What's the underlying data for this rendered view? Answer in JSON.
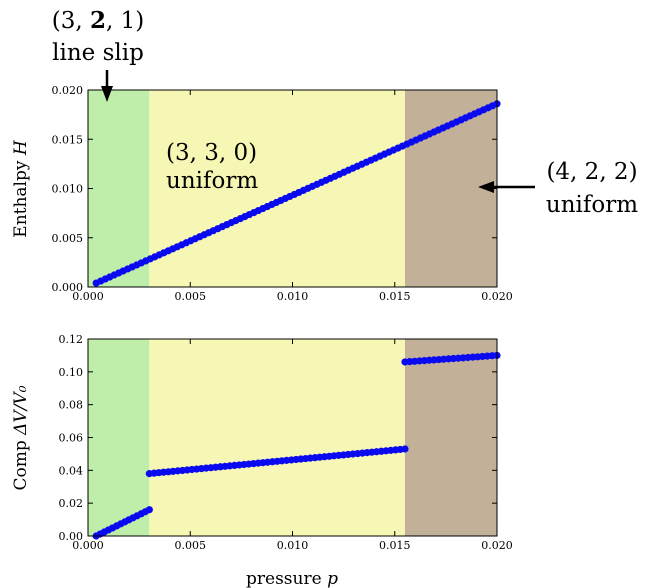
{
  "chart_data": [
    {
      "type": "scatter",
      "panel": "top",
      "ylabel": "Enthalpy",
      "ylabel_var": "H",
      "xlim": [
        0.0,
        0.02
      ],
      "ylim": [
        0.0,
        0.02
      ],
      "xticks": [
        "0.000",
        "0.005",
        "0.010",
        "0.015",
        "0.020"
      ],
      "yticks": [
        "0.000",
        "0.005",
        "0.010",
        "0.015",
        "0.020"
      ],
      "regions": [
        {
          "x0": 0.0,
          "x1": 0.003,
          "color": "#bfeeaa"
        },
        {
          "x0": 0.003,
          "x1": 0.0155,
          "color": "#f7f7b5"
        },
        {
          "x0": 0.0155,
          "x1": 0.02,
          "color": "#c2b198"
        }
      ],
      "series": [
        {
          "color": "#0a0af0",
          "segments": [
            {
              "x0": 0.0004,
              "y0": 0.0004,
              "x1": 0.02,
              "y1": 0.0186,
              "n": 90
            }
          ]
        }
      ],
      "annotations": [
        {
          "line1": "(3, 3, 0)",
          "line2": "uniform",
          "at_x": 0.0038,
          "at_y": 0.0153
        }
      ]
    },
    {
      "type": "scatter",
      "panel": "bottom",
      "ylabel": "Comp",
      "ylabel_var": "ΔV/V₀",
      "xlabel": "pressure",
      "xlabel_var": "p",
      "xlim": [
        0.0,
        0.02
      ],
      "ylim": [
        0.0,
        0.12
      ],
      "xticks": [
        "0.000",
        "0.005",
        "0.010",
        "0.015",
        "0.020"
      ],
      "yticks": [
        "0.00",
        "0.02",
        "0.04",
        "0.06",
        "0.08",
        "0.10",
        "0.12"
      ],
      "regions": [
        {
          "x0": 0.0,
          "x1": 0.003,
          "color": "#bfeeaa"
        },
        {
          "x0": 0.003,
          "x1": 0.0155,
          "color": "#f7f7b5"
        },
        {
          "x0": 0.0155,
          "x1": 0.02,
          "color": "#c2b198"
        }
      ],
      "series": [
        {
          "color": "#0a0af0",
          "segments": [
            {
              "x0": 0.0004,
              "y0": 0.0,
              "x1": 0.003,
              "y1": 0.016,
              "n": 14
            },
            {
              "x0": 0.003,
              "y0": 0.038,
              "x1": 0.0155,
              "y1": 0.053,
              "n": 55
            },
            {
              "x0": 0.0155,
              "y0": 0.106,
              "x1": 0.02,
              "y1": 0.11,
              "n": 20
            }
          ]
        }
      ]
    }
  ],
  "annotations": {
    "left_label": {
      "line1_pre": "(3, ",
      "line1_bold": "2",
      "line1_post": ", 1)",
      "line2": "line slip"
    },
    "right_label": {
      "line1": "(4, 2, 2)",
      "line2": "uniform"
    }
  }
}
